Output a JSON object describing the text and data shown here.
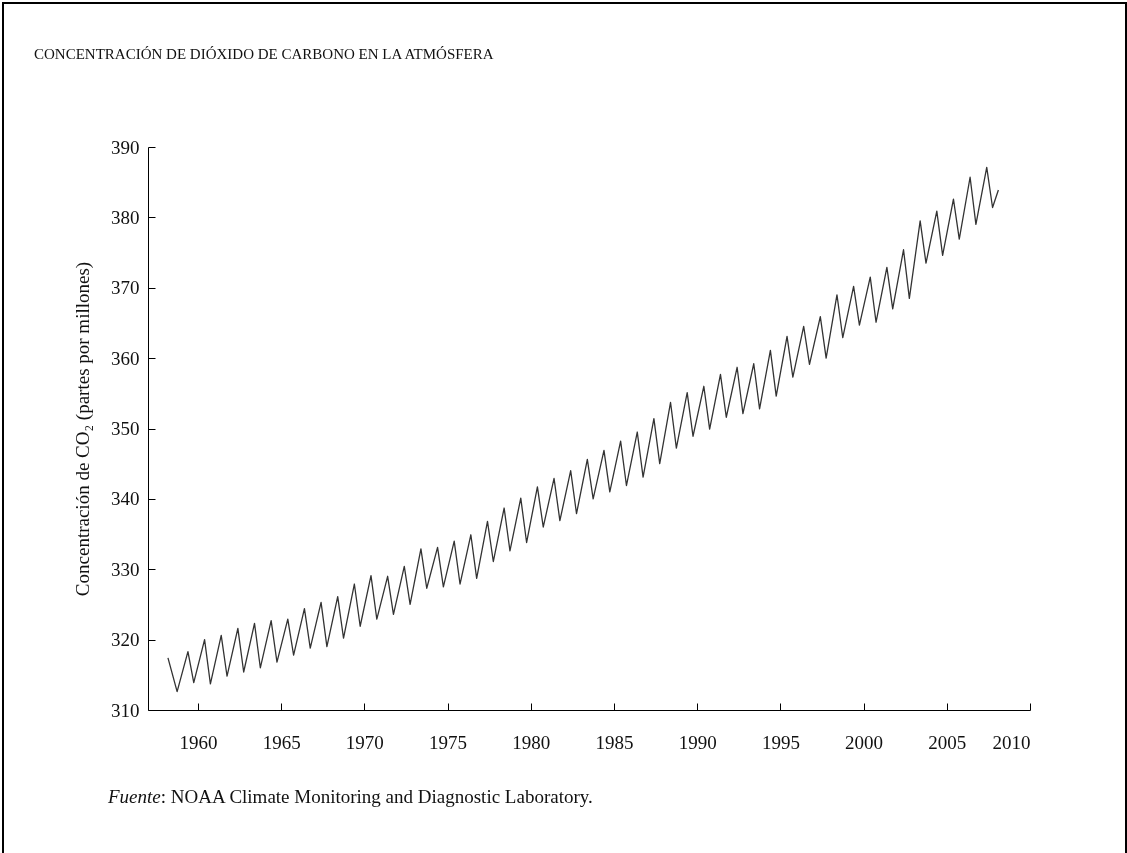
{
  "chart_data": {
    "type": "line",
    "title": "CONCENTRACIÓN DE DIÓXIDO DE CARBONO EN LA ATMÓSFERA",
    "ylabel": "Concentración de CO₂ (partes por millones)",
    "annotations": [
      "Fuente: NOAA Climate Monitoring and Diagnostic Laboratory."
    ],
    "xlim": [
      1957,
      2010
    ],
    "xticks": [
      1960,
      1965,
      1970,
      1975,
      1980,
      1985,
      1990,
      1995,
      2000,
      2005,
      2010
    ],
    "ylim": [
      310,
      390
    ],
    "yticks": [
      310,
      320,
      330,
      340,
      350,
      360,
      370,
      380,
      390
    ],
    "grid": false,
    "marker": "none",
    "line_style": "solid",
    "series": [
      {
        "color": "#333333",
        "x": [
          1958.2,
          1958.75,
          1959.4,
          1959.75,
          1960.4,
          1960.75,
          1961.4,
          1961.75,
          1962.4,
          1962.75,
          1963.4,
          1963.75,
          1964.4,
          1964.75,
          1965.4,
          1965.75,
          1966.4,
          1966.75,
          1967.4,
          1967.75,
          1968.4,
          1968.75,
          1969.4,
          1969.75,
          1970.4,
          1970.75,
          1971.4,
          1971.75,
          1972.4,
          1972.75,
          1973.4,
          1973.75,
          1974.4,
          1974.75,
          1975.4,
          1975.75,
          1976.4,
          1976.75,
          1977.4,
          1977.75,
          1978.4,
          1978.75,
          1979.4,
          1979.75,
          1980.4,
          1980.75,
          1981.4,
          1981.75,
          1982.4,
          1982.75,
          1983.4,
          1983.75,
          1984.4,
          1984.75,
          1985.4,
          1985.75,
          1986.4,
          1986.75,
          1987.4,
          1987.75,
          1988.4,
          1988.75,
          1989.4,
          1989.75,
          1990.4,
          1990.75,
          1991.4,
          1991.75,
          1992.4,
          1992.75,
          1993.4,
          1993.75,
          1994.4,
          1994.75,
          1995.4,
          1995.75,
          1996.4,
          1996.75,
          1997.4,
          1997.75,
          1998.4,
          1998.75,
          1999.4,
          1999.75,
          2000.4,
          2000.75,
          2001.4,
          2001.75,
          2002.4,
          2002.75,
          2003.4,
          2003.75,
          2004.4,
          2004.75,
          2005.4,
          2005.75,
          2006.4,
          2006.75,
          2007.4,
          2007.75,
          2008.1
        ],
        "values": [
          317.4,
          312.6,
          318.3,
          313.9,
          320.0,
          313.7,
          320.6,
          314.8,
          321.6,
          315.4,
          322.3,
          316.0,
          322.7,
          316.8,
          322.9,
          317.8,
          324.4,
          318.8,
          325.3,
          319.0,
          326.1,
          320.2,
          327.9,
          321.9,
          329.1,
          322.9,
          329.0,
          323.6,
          330.4,
          325.0,
          332.9,
          327.3,
          333.1,
          327.5,
          334.0,
          327.9,
          334.9,
          328.7,
          336.8,
          331.1,
          338.7,
          332.6,
          340.1,
          333.8,
          341.7,
          336.0,
          342.9,
          336.9,
          344.0,
          337.9,
          345.6,
          340.0,
          346.9,
          341.0,
          348.2,
          341.9,
          349.5,
          343.1,
          351.4,
          345.0,
          353.7,
          347.2,
          355.1,
          348.9,
          356.0,
          349.9,
          357.7,
          351.6,
          358.7,
          352.1,
          359.2,
          352.8,
          361.1,
          354.6,
          363.1,
          357.3,
          364.5,
          359.1,
          365.9,
          360.0,
          369.0,
          362.9,
          370.2,
          364.7,
          371.5,
          365.1,
          372.9,
          367.0,
          375.4,
          368.5,
          379.5,
          373.5,
          380.9,
          374.6,
          382.6,
          376.9,
          385.7,
          379.0,
          387.1,
          381.4,
          383.9
        ]
      }
    ]
  }
}
